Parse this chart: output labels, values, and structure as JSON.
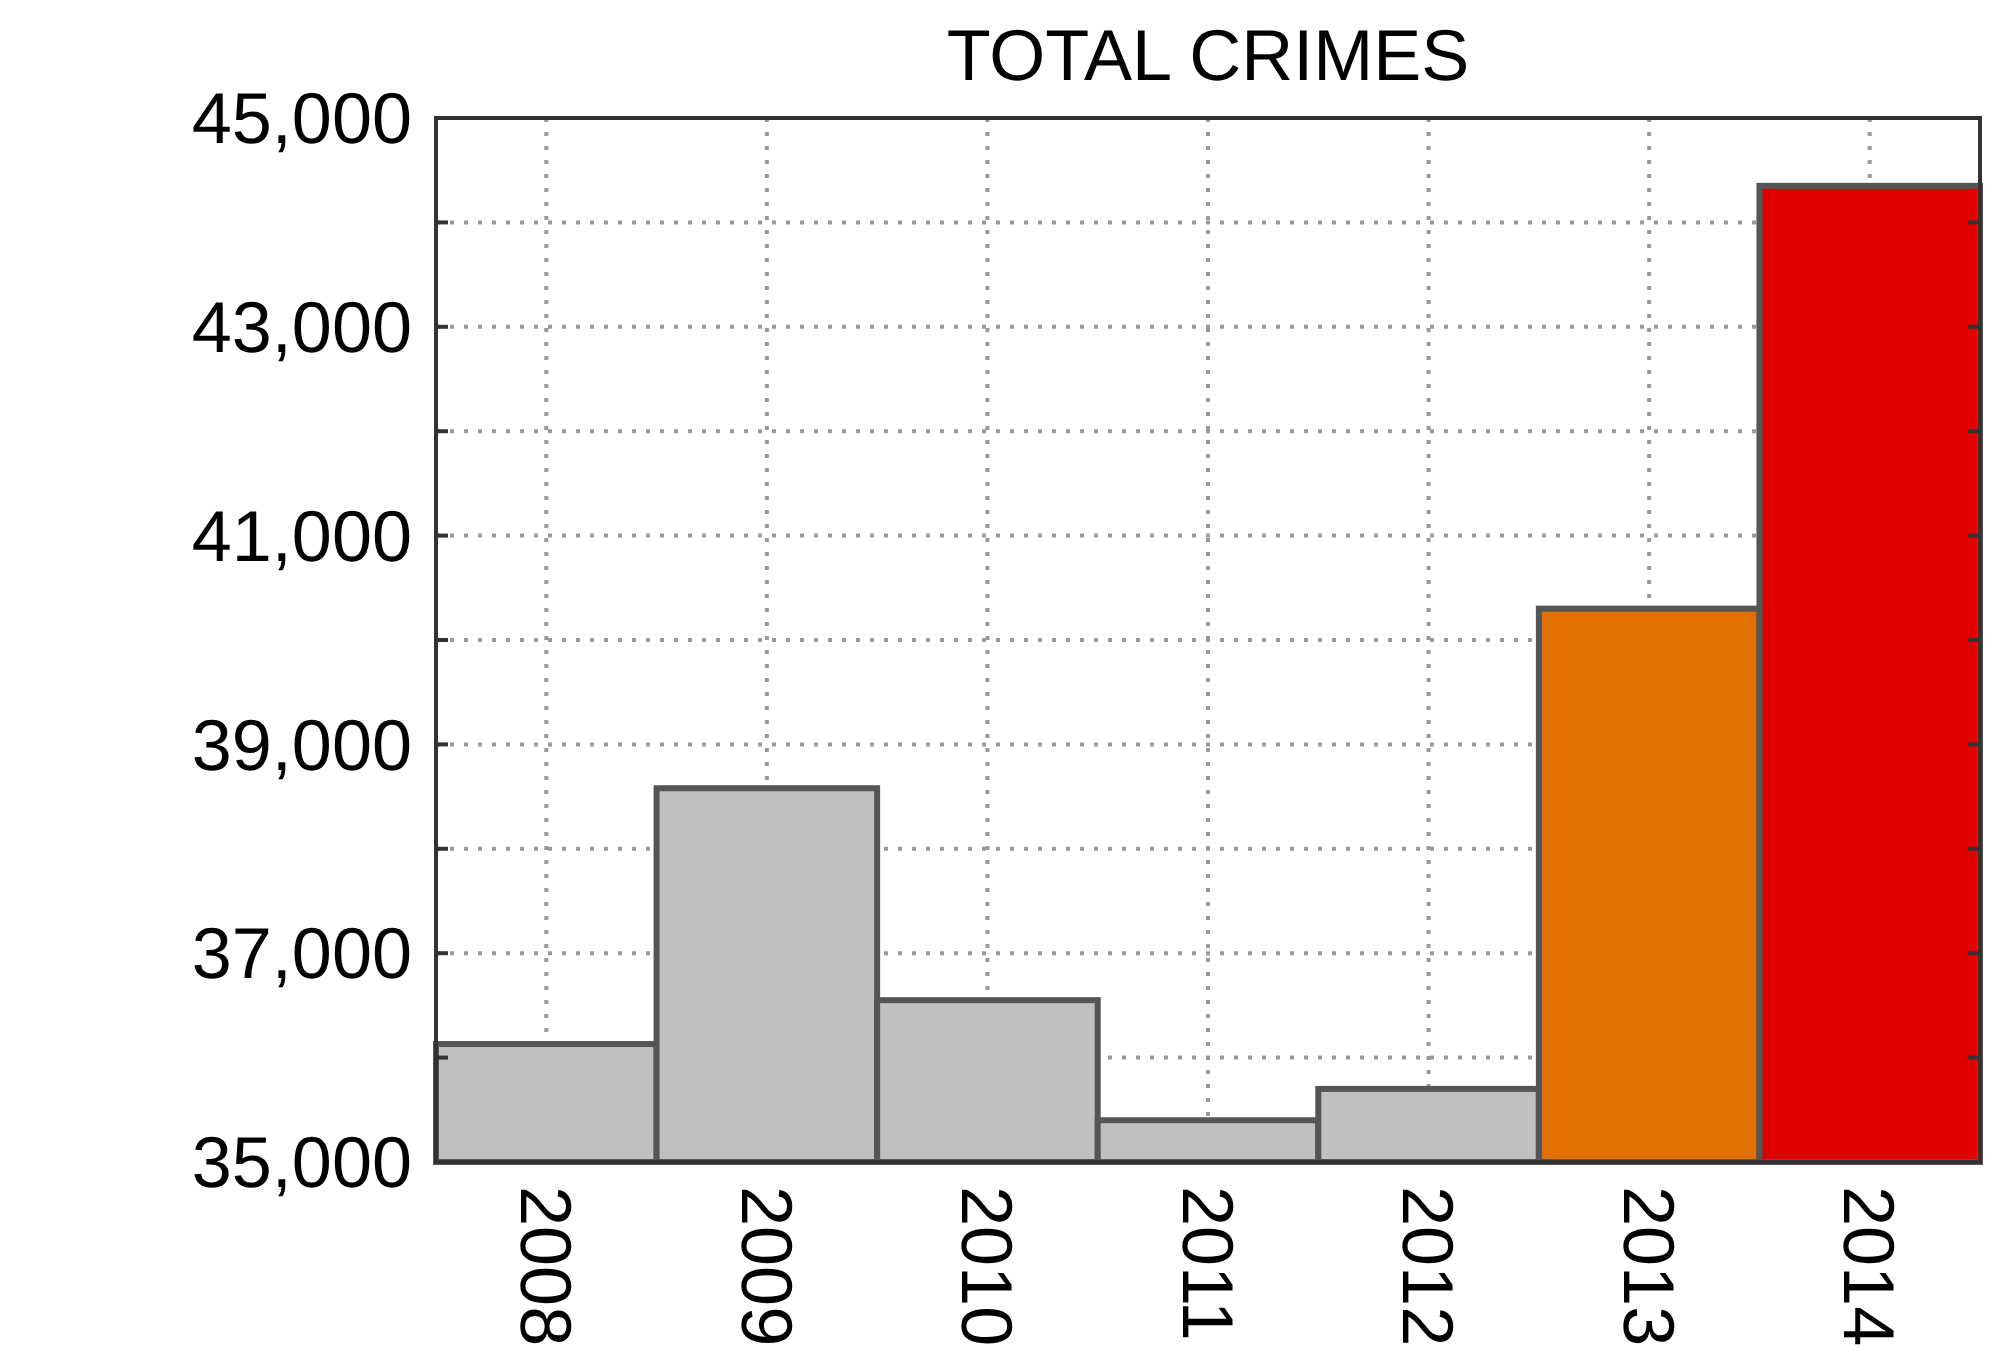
{
  "chart_data": {
    "type": "bar",
    "title": "TOTAL CRIMES",
    "categories": [
      "2008",
      "2009",
      "2010",
      "2011",
      "2012",
      "2013",
      "2014"
    ],
    "values": [
      36130,
      38580,
      36550,
      35400,
      35700,
      40300,
      44350
    ],
    "colors": [
      "#c0c0c0",
      "#c0c0c0",
      "#c0c0c0",
      "#c0c0c0",
      "#c0c0c0",
      "#e07000",
      "#e00000"
    ],
    "ylim": [
      35000,
      45000
    ],
    "yticks": [
      {
        "value": 35000,
        "label": "35,000"
      },
      {
        "value": 36000,
        "label": null
      },
      {
        "value": 37000,
        "label": "37,000"
      },
      {
        "value": 38000,
        "label": null
      },
      {
        "value": 39000,
        "label": "39,000"
      },
      {
        "value": 40000,
        "label": null
      },
      {
        "value": 41000,
        "label": "41,000"
      },
      {
        "value": 42000,
        "label": null
      },
      {
        "value": 43000,
        "label": "43,000"
      },
      {
        "value": 44000,
        "label": null
      },
      {
        "value": 45000,
        "label": "45,000"
      }
    ],
    "grid": true
  }
}
